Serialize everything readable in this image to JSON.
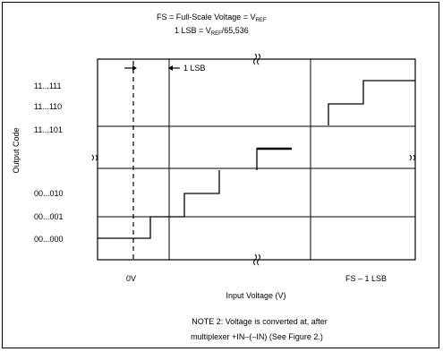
{
  "header": {
    "line1": "FS = Full-Scale Voltage = V",
    "line1_sub": "REF",
    "line2_prefix": "1 LSB = V",
    "line2_sub": "REF",
    "line2_suffix": "/65,536"
  },
  "lsb_label": "1 LSB",
  "y_axis_label": "Output Code",
  "x_axis_label": "Input Voltage (V)",
  "code_labels": [
    "11...111",
    "11...110",
    "11...101",
    "00...010",
    "00...001",
    "00...000"
  ],
  "x_tick_labels": {
    "left": "0V",
    "right": "FS – 1 LSB"
  },
  "note": {
    "line1": "NOTE 2: Voltage is converted at, after",
    "line2": "multiplexer +IN–(–IN) (See Figure 2.)"
  }
}
